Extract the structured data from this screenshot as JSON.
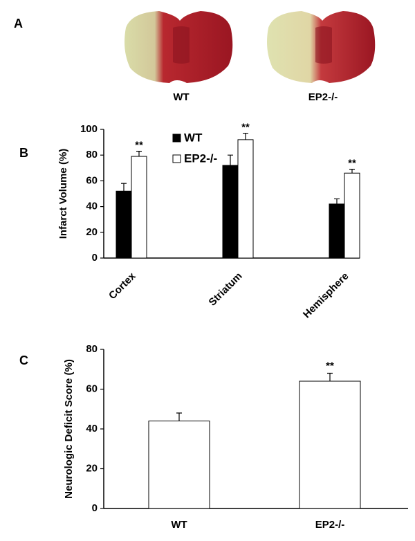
{
  "figure": {
    "panel": "A",
    "image_labels": [
      "WT",
      "EP2-/-"
    ]
  },
  "chart_data": [
    {
      "type": "bar",
      "panel": "B",
      "ylabel": "Infarct Volume (%)",
      "categories": [
        "Cortex",
        "Striatum",
        "Hemisphere"
      ],
      "series": [
        {
          "name": "WT",
          "color": "#000000",
          "values": [
            52,
            72,
            42
          ],
          "errors": [
            6,
            8,
            4
          ]
        },
        {
          "name": "EP2-/-",
          "color": "#ffffff",
          "values": [
            79,
            92,
            66
          ],
          "errors": [
            4,
            5,
            3
          ],
          "significance": [
            "**",
            "**",
            "**"
          ]
        }
      ],
      "ylim": [
        0,
        100
      ],
      "yticks": [
        0,
        20,
        40,
        60,
        80,
        100
      ],
      "grid": false,
      "legend": "upper left"
    },
    {
      "type": "bar",
      "panel": "C",
      "ylabel": "Neurologic Deficit Score (%)",
      "categories": [
        "WT",
        "EP2-/-"
      ],
      "values": [
        44,
        64
      ],
      "errors": [
        4,
        4
      ],
      "significance": [
        null,
        "**"
      ],
      "color": "#ffffff",
      "ylim": [
        0,
        80
      ],
      "yticks": [
        0,
        20,
        40,
        60,
        80
      ],
      "grid": false
    }
  ]
}
